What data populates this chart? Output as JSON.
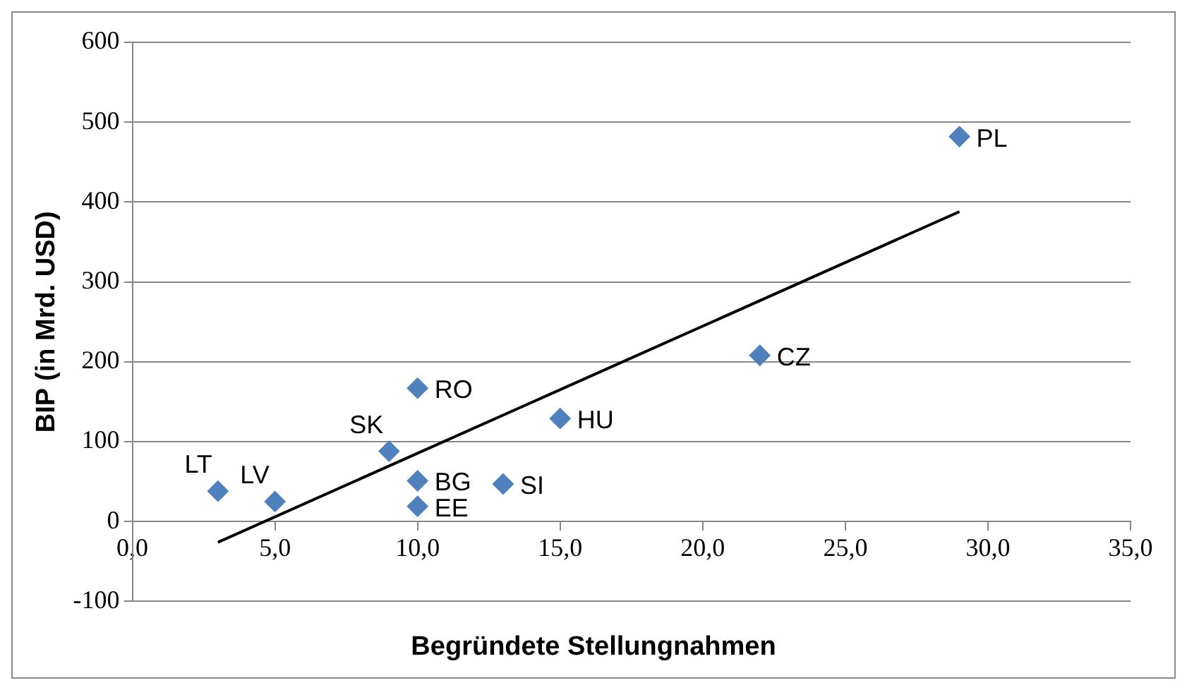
{
  "chart_data": {
    "type": "scatter",
    "xlabel": "Begründete Stellungnahmen",
    "ylabel": "BIP (in Mrd. USD)",
    "xlim": [
      0,
      35
    ],
    "ylim": [
      -100,
      600
    ],
    "xticks": [
      {
        "value": 0,
        "label": "0,0"
      },
      {
        "value": 5,
        "label": "5,0"
      },
      {
        "value": 10,
        "label": "10,0"
      },
      {
        "value": 15,
        "label": "15,0"
      },
      {
        "value": 20,
        "label": "20,0"
      },
      {
        "value": 25,
        "label": "25,0"
      },
      {
        "value": 30,
        "label": "30,0"
      },
      {
        "value": 35,
        "label": "35,0"
      }
    ],
    "yticks": [
      -100,
      0,
      100,
      200,
      300,
      400,
      500,
      600
    ],
    "grid": "y",
    "legend": false,
    "marker": "diamond",
    "series": [
      {
        "color": "#4f81bd",
        "x": [
          3,
          5,
          9,
          10,
          10,
          10,
          13,
          15,
          22,
          29
        ],
        "values": [
          38,
          25,
          88,
          167,
          51,
          19,
          47,
          129,
          208,
          482
        ]
      },
      {
        "type": "line",
        "color": "#000000",
        "marker": "none",
        "line_style": "solid",
        "x": [
          3,
          29
        ],
        "values": [
          -26,
          388
        ]
      }
    ],
    "annotations": [
      {
        "text": "LT",
        "x": 3,
        "y": 38
      },
      {
        "text": "LV",
        "x": 5,
        "y": 25
      },
      {
        "text": "SK",
        "x": 9,
        "y": 88
      },
      {
        "text": "RO",
        "x": 10,
        "y": 167
      },
      {
        "text": "BG",
        "x": 10,
        "y": 51
      },
      {
        "text": "EE",
        "x": 10,
        "y": 19
      },
      {
        "text": "SI",
        "x": 13,
        "y": 47
      },
      {
        "text": "HU",
        "x": 15,
        "y": 129
      },
      {
        "text": "CZ",
        "x": 22,
        "y": 208
      },
      {
        "text": "PL",
        "x": 29,
        "y": 482
      }
    ]
  }
}
